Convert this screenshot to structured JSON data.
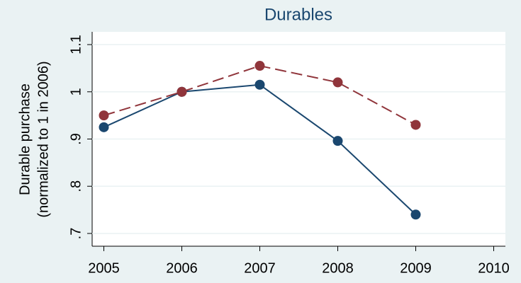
{
  "chart_data": {
    "type": "line",
    "title": "Durables",
    "ylabel": [
      "Durable purchase",
      "(normalized to 1 in 2006)"
    ],
    "x": [
      2005,
      2006,
      2007,
      2008,
      2009
    ],
    "series": [
      {
        "color": "#1a476f",
        "dash": false,
        "values": [
          0.925,
          1.0,
          1.015,
          0.896,
          0.74
        ]
      },
      {
        "color": "#90353b",
        "dash": true,
        "values": [
          0.95,
          1.0,
          1.055,
          1.02,
          0.93
        ]
      }
    ],
    "xlim": [
      2004.85,
      2010.15
    ],
    "xticks": [
      2005,
      2006,
      2007,
      2008,
      2009,
      2010
    ],
    "ylim": [
      0.673,
      1.127
    ],
    "yticks": [
      {
        "value": 0.7,
        "label": ".7"
      },
      {
        "value": 0.8,
        "label": ".8"
      },
      {
        "value": 0.9,
        "label": ".9"
      },
      1,
      1.1
    ],
    "grid": true
  }
}
